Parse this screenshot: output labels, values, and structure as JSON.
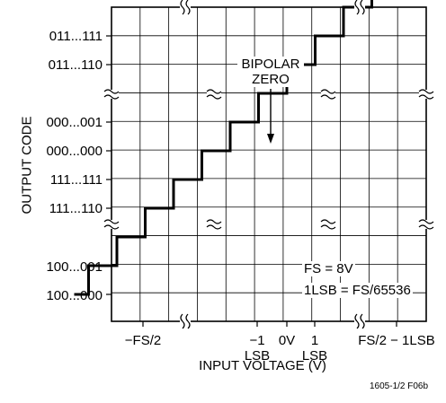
{
  "chart_data": {
    "type": "line",
    "title": "",
    "xlabel": "INPUT VOLTAGE (V)",
    "ylabel": "OUTPUT CODE",
    "y_tick_labels": [
      "011...111",
      "011...110",
      "000...001",
      "000...000",
      "111...111",
      "111...110",
      "100...001",
      "100...000"
    ],
    "x_tick_labels": [
      "−FS/2",
      "−1",
      "0V",
      "1",
      "FS/2 − 1LSB"
    ],
    "x_tick_sublabels": [
      "LSB",
      "LSB"
    ],
    "step_series": {
      "name": "",
      "x": [
        -7,
        -6,
        -5,
        -4,
        -3,
        -2,
        -1,
        0,
        1,
        2,
        3,
        4,
        5,
        6,
        7
      ],
      "y": [
        0,
        1,
        2,
        3,
        4,
        5,
        6,
        7,
        8,
        9,
        10,
        11,
        12,
        13,
        13
      ]
    },
    "annotations": {
      "bipolar_zero": [
        "BIPOLAR",
        "ZERO"
      ],
      "fs": "FS = 8V",
      "lsb": "1LSB = FS/65536"
    },
    "grid": true,
    "axis_breaks": "horizontal and vertical axis breaks",
    "figure_id": "1605-1/2 F06b"
  }
}
